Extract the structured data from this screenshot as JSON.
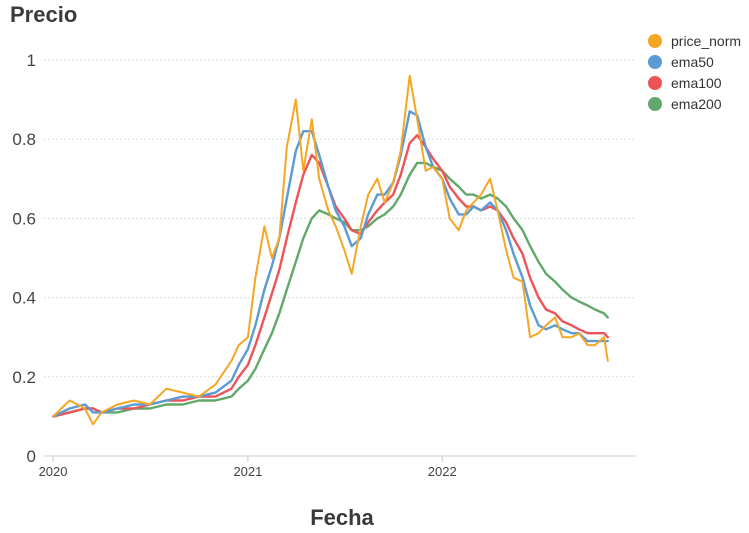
{
  "chart_data": {
    "type": "line",
    "title": "",
    "xlabel": "Fecha",
    "ylabel": "Precio",
    "x_ticks": [
      "2020",
      "2021",
      "2022"
    ],
    "y_ticks": [
      "0",
      "0.2",
      "0.4",
      "0.6",
      "0.8",
      "1"
    ],
    "xlim": [
      "2019-12-15",
      "2022-12-31"
    ],
    "ylim": [
      0,
      1.02
    ],
    "grid": "horizontal",
    "legend_position": "top-right",
    "x": [
      "2020-01-01",
      "2020-02-01",
      "2020-03-01",
      "2020-03-16",
      "2020-04-01",
      "2020-05-01",
      "2020-06-01",
      "2020-07-01",
      "2020-08-01",
      "2020-09-01",
      "2020-10-01",
      "2020-11-01",
      "2020-12-01",
      "2020-12-15",
      "2021-01-01",
      "2021-01-15",
      "2021-02-01",
      "2021-02-15",
      "2021-03-01",
      "2021-03-15",
      "2021-04-01",
      "2021-04-15",
      "2021-05-01",
      "2021-05-15",
      "2021-06-01",
      "2021-06-15",
      "2021-07-01",
      "2021-07-15",
      "2021-08-01",
      "2021-08-15",
      "2021-09-01",
      "2021-09-15",
      "2021-10-01",
      "2021-10-15",
      "2021-11-01",
      "2021-11-15",
      "2021-12-01",
      "2021-12-15",
      "2022-01-01",
      "2022-01-15",
      "2022-02-01",
      "2022-02-15",
      "2022-03-01",
      "2022-03-15",
      "2022-04-01",
      "2022-04-15",
      "2022-05-01",
      "2022-05-15",
      "2022-06-01",
      "2022-06-15",
      "2022-07-01",
      "2022-07-15",
      "2022-08-01",
      "2022-08-15",
      "2022-09-01",
      "2022-09-15",
      "2022-10-01",
      "2022-10-15",
      "2022-11-01",
      "2022-11-08"
    ],
    "series": [
      {
        "name": "price_norm",
        "color": "#f5a623",
        "values": [
          0.1,
          0.14,
          0.12,
          0.08,
          0.11,
          0.13,
          0.14,
          0.13,
          0.17,
          0.16,
          0.15,
          0.18,
          0.24,
          0.28,
          0.3,
          0.45,
          0.58,
          0.5,
          0.55,
          0.78,
          0.9,
          0.72,
          0.85,
          0.7,
          0.62,
          0.58,
          0.52,
          0.46,
          0.58,
          0.66,
          0.7,
          0.64,
          0.69,
          0.77,
          0.96,
          0.85,
          0.72,
          0.73,
          0.7,
          0.6,
          0.57,
          0.62,
          0.64,
          0.66,
          0.7,
          0.62,
          0.52,
          0.45,
          0.44,
          0.3,
          0.31,
          0.33,
          0.35,
          0.3,
          0.3,
          0.31,
          0.28,
          0.28,
          0.3,
          0.24
        ]
      },
      {
        "name": "ema50",
        "color": "#5b9bd5",
        "values": [
          0.1,
          0.12,
          0.13,
          0.11,
          0.11,
          0.12,
          0.13,
          0.13,
          0.14,
          0.15,
          0.15,
          0.16,
          0.19,
          0.23,
          0.27,
          0.33,
          0.42,
          0.48,
          0.55,
          0.65,
          0.77,
          0.82,
          0.82,
          0.76,
          0.68,
          0.62,
          0.58,
          0.53,
          0.55,
          0.61,
          0.66,
          0.66,
          0.69,
          0.76,
          0.87,
          0.86,
          0.78,
          0.73,
          0.7,
          0.65,
          0.61,
          0.61,
          0.63,
          0.62,
          0.64,
          0.62,
          0.57,
          0.51,
          0.45,
          0.38,
          0.33,
          0.32,
          0.33,
          0.32,
          0.31,
          0.31,
          0.29,
          0.29,
          0.29,
          0.29
        ]
      },
      {
        "name": "ema100",
        "color": "#ee5358",
        "values": [
          0.1,
          0.11,
          0.12,
          0.12,
          0.11,
          0.12,
          0.12,
          0.13,
          0.14,
          0.14,
          0.15,
          0.15,
          0.17,
          0.2,
          0.23,
          0.28,
          0.35,
          0.41,
          0.47,
          0.55,
          0.64,
          0.71,
          0.76,
          0.74,
          0.68,
          0.63,
          0.6,
          0.57,
          0.56,
          0.59,
          0.62,
          0.64,
          0.66,
          0.71,
          0.79,
          0.81,
          0.78,
          0.75,
          0.72,
          0.68,
          0.65,
          0.63,
          0.63,
          0.62,
          0.63,
          0.62,
          0.59,
          0.55,
          0.51,
          0.45,
          0.4,
          0.37,
          0.36,
          0.34,
          0.33,
          0.32,
          0.31,
          0.31,
          0.31,
          0.3
        ]
      },
      {
        "name": "ema200",
        "color": "#62a86a",
        "values": [
          0.1,
          0.11,
          0.12,
          0.12,
          0.11,
          0.11,
          0.12,
          0.12,
          0.13,
          0.13,
          0.14,
          0.14,
          0.15,
          0.17,
          0.19,
          0.22,
          0.27,
          0.31,
          0.36,
          0.42,
          0.49,
          0.55,
          0.6,
          0.62,
          0.61,
          0.6,
          0.59,
          0.57,
          0.57,
          0.58,
          0.6,
          0.61,
          0.63,
          0.66,
          0.71,
          0.74,
          0.74,
          0.73,
          0.72,
          0.7,
          0.68,
          0.66,
          0.66,
          0.65,
          0.66,
          0.65,
          0.63,
          0.6,
          0.57,
          0.53,
          0.49,
          0.46,
          0.44,
          0.42,
          0.4,
          0.39,
          0.38,
          0.37,
          0.36,
          0.35
        ]
      }
    ]
  }
}
